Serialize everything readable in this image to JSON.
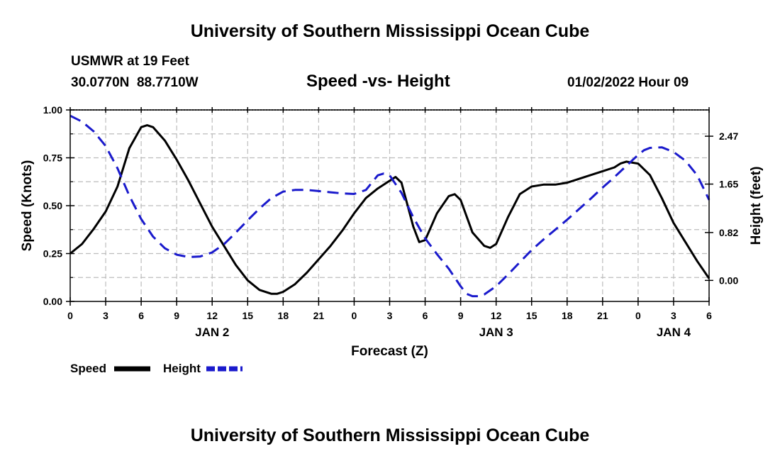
{
  "page": {
    "title": "University of Southern Mississippi Ocean Cube",
    "footer_title": "University of Southern Mississippi Ocean Cube",
    "station": "USMWR at 19 Feet",
    "coords": "30.0770N  88.7710W",
    "subtitle": "Speed -vs- Height",
    "timestamp": "01/02/2022 Hour 09"
  },
  "chart_data": {
    "type": "line",
    "title": "Speed -vs- Height",
    "xlabel": "Forecast (Z)",
    "ylabel": "Speed (Knots)",
    "y2label": "Height (feet)",
    "x_range_hours": [
      0,
      54
    ],
    "ylim": [
      0,
      1
    ],
    "y2lim": [
      -0.36,
      2.92
    ],
    "y_ticks": [
      0,
      0.25,
      0.5,
      0.75,
      1.0
    ],
    "y_tick_labels": [
      "0.00",
      "0.25",
      "0.50",
      "0.75",
      "1.00"
    ],
    "y2_ticks": [
      0,
      0.82,
      1.65,
      2.47
    ],
    "y2_tick_labels": [
      "0.00",
      "0.82",
      "1.65",
      "2.47"
    ],
    "x_ticks": [
      0,
      3,
      6,
      9,
      12,
      15,
      18,
      21,
      24,
      27,
      30,
      33,
      36,
      39,
      42,
      45,
      48,
      51,
      54
    ],
    "x_tick_labels": [
      "0",
      "3",
      "6",
      "9",
      "12",
      "15",
      "18",
      "21",
      "0",
      "3",
      "6",
      "9",
      "12",
      "15",
      "18",
      "21",
      "0",
      "3",
      "6"
    ],
    "date_labels": [
      {
        "label": "JAN 2",
        "hour": 12
      },
      {
        "label": "JAN 3",
        "hour": 36
      },
      {
        "label": "JAN 4",
        "hour": 51
      }
    ],
    "grid": true,
    "legend": "bottom-left",
    "series": [
      {
        "name": "Speed",
        "axis": "left",
        "color": "#000000",
        "dash": "solid",
        "x": [
          0,
          1,
          2,
          3,
          4,
          5,
          6,
          6.5,
          7,
          8,
          9,
          10,
          11,
          12,
          13,
          14,
          15,
          16,
          17,
          17.5,
          18,
          19,
          20,
          21,
          22,
          23,
          24,
          25,
          26,
          27,
          27.5,
          28,
          29,
          29.5,
          30,
          31,
          32,
          32.5,
          33,
          34,
          35,
          35.5,
          36,
          37,
          38,
          39,
          40,
          41,
          42,
          43,
          44,
          45,
          46,
          46.5,
          47,
          48,
          49,
          50,
          51,
          52,
          53,
          54
        ],
        "values": [
          0.25,
          0.3,
          0.38,
          0.47,
          0.6,
          0.8,
          0.91,
          0.92,
          0.91,
          0.84,
          0.74,
          0.63,
          0.51,
          0.39,
          0.29,
          0.19,
          0.11,
          0.06,
          0.04,
          0.04,
          0.05,
          0.09,
          0.15,
          0.22,
          0.29,
          0.37,
          0.46,
          0.54,
          0.59,
          0.63,
          0.65,
          0.62,
          0.39,
          0.31,
          0.32,
          0.46,
          0.55,
          0.56,
          0.53,
          0.36,
          0.29,
          0.28,
          0.3,
          0.44,
          0.56,
          0.6,
          0.61,
          0.61,
          0.62,
          0.64,
          0.66,
          0.68,
          0.7,
          0.72,
          0.73,
          0.72,
          0.66,
          0.54,
          0.41,
          0.31,
          0.21,
          0.12
        ]
      },
      {
        "name": "Height",
        "axis": "right",
        "color": "#1a1acc",
        "dash": "dashed",
        "x": [
          0,
          1,
          2,
          3,
          4,
          5,
          6,
          7,
          8,
          9,
          10,
          11,
          12,
          13,
          14,
          15,
          16,
          17,
          18,
          19,
          20,
          21,
          22,
          23,
          24,
          25,
          26,
          26.5,
          27,
          28,
          29,
          30,
          31,
          32,
          33,
          33.5,
          34,
          34.5,
          35,
          36,
          37,
          38,
          39,
          40,
          41,
          42,
          43,
          44,
          45,
          46,
          47,
          48,
          48.5,
          49,
          50,
          51,
          52,
          53,
          54
        ],
        "values": [
          2.82,
          2.72,
          2.55,
          2.3,
          1.92,
          1.45,
          1.05,
          0.75,
          0.55,
          0.44,
          0.4,
          0.41,
          0.48,
          0.62,
          0.82,
          1.03,
          1.23,
          1.41,
          1.52,
          1.55,
          1.55,
          1.53,
          1.51,
          1.49,
          1.48,
          1.55,
          1.8,
          1.83,
          1.8,
          1.5,
          1.08,
          0.72,
          0.45,
          0.2,
          -0.1,
          -0.23,
          -0.27,
          -0.27,
          -0.24,
          -0.1,
          0.1,
          0.31,
          0.52,
          0.7,
          0.87,
          1.04,
          1.22,
          1.4,
          1.59,
          1.77,
          1.96,
          2.15,
          2.23,
          2.27,
          2.28,
          2.2,
          2.05,
          1.8,
          1.38
        ]
      }
    ]
  }
}
